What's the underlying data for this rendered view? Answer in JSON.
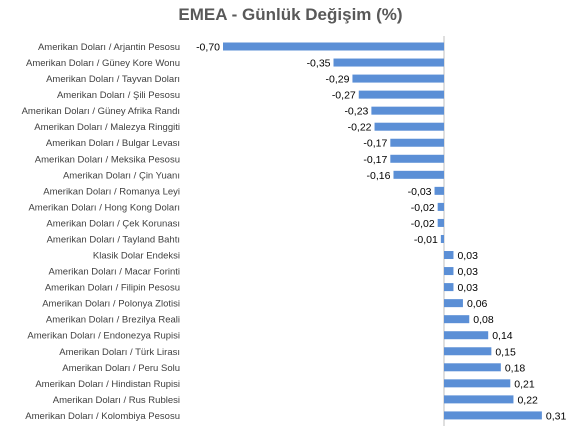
{
  "chart_data": {
    "type": "bar",
    "orientation": "horizontal",
    "title": "EMEA - Günlük Değişim (%)",
    "xlabel": "",
    "ylabel": "",
    "xlim": [
      -0.7,
      0.31
    ],
    "grid": false,
    "legend": "none",
    "bar_color": "#5b8fd6",
    "categories": [
      "Amerikan Doları / Arjantin Pesosu",
      "Amerikan Doları / Güney Kore Wonu",
      "Amerikan Doları / Tayvan Doları",
      "Amerikan Doları / Şili Pesosu",
      "Amerikan Doları / Güney Afrika Randı",
      "Amerikan Doları / Malezya Ringgiti",
      "Amerikan Doları / Bulgar Levası",
      "Amerikan Doları / Meksika Pesosu",
      "Amerikan Doları / Çin Yuanı",
      "Amerikan Doları / Romanya Leyi",
      "Amerikan Doları / Hong Kong Doları",
      "Amerikan Doları / Çek Korunası",
      "Amerikan Doları / Tayland Bahtı",
      "Klasik Dolar Endeksi",
      "Amerikan Doları / Macar Forinti",
      "Amerikan Doları / Filipin Pesosu",
      "Amerikan Doları / Polonya Zlotisi",
      "Amerikan Doları / Brezilya Reali",
      "Amerikan Doları / Endonezya Rupisi",
      "Amerikan Doları / Türk Lirası",
      "Amerikan Doları / Peru Solu",
      "Amerikan Doları / Hindistan Rupisi",
      "Amerikan Doları / Rus Rublesi",
      "Amerikan Doları / Kolombiya Pesosu"
    ],
    "values": [
      -0.7,
      -0.35,
      -0.29,
      -0.27,
      -0.23,
      -0.22,
      -0.17,
      -0.17,
      -0.16,
      -0.03,
      -0.02,
      -0.02,
      -0.01,
      0.03,
      0.03,
      0.03,
      0.06,
      0.08,
      0.14,
      0.15,
      0.18,
      0.21,
      0.22,
      0.31
    ],
    "value_labels": [
      "-0,70",
      "-0,35",
      "-0,29",
      "-0,27",
      "-0,23",
      "-0,22",
      "-0,17",
      "-0,17",
      "-0,16",
      "-0,03",
      "-0,02",
      "-0,02",
      "-0,01",
      "0,03",
      "0,03",
      "0,03",
      "0,06",
      "0,08",
      "0,14",
      "0,15",
      "0,18",
      "0,21",
      "0,22",
      "0,31"
    ]
  }
}
